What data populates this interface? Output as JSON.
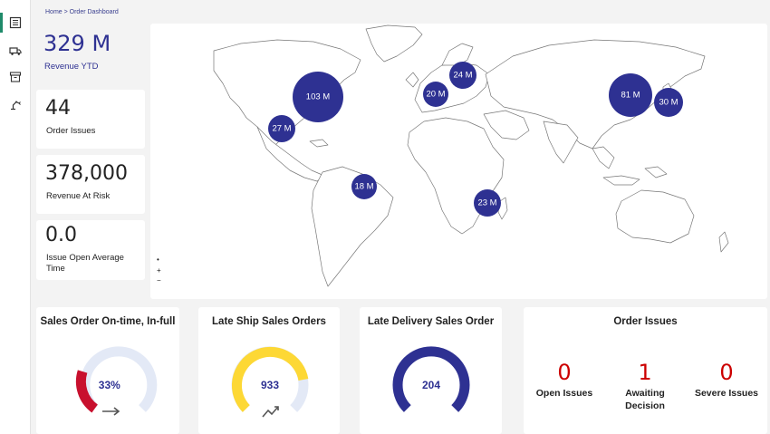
{
  "breadcrumb": "Home > Order Dashboard",
  "nav": {
    "icons": [
      "list-icon",
      "truck-icon",
      "archive-icon",
      "robot-arm-icon"
    ]
  },
  "kpis": {
    "revenue_ytd": {
      "value": "329 M",
      "label": "Revenue YTD"
    },
    "order_issues": {
      "value": "44",
      "label": "Order Issues"
    },
    "revenue_at_risk": {
      "value": "378,000",
      "label": "Revenue At Risk"
    },
    "issue_open_avg": {
      "value": "0.0",
      "label": "Issue Open Average Time"
    }
  },
  "map": {
    "zoom_controls": {
      "dot": "•",
      "plus": "+",
      "minus": "−"
    },
    "bubbles": [
      {
        "label": "103 M",
        "region": "north-america"
      },
      {
        "label": "27 M",
        "region": "mexico"
      },
      {
        "label": "18 M",
        "region": "brazil"
      },
      {
        "label": "20 M",
        "region": "western-europe"
      },
      {
        "label": "24 M",
        "region": "central-europe"
      },
      {
        "label": "23 M",
        "region": "south-africa"
      },
      {
        "label": "81 M",
        "region": "china"
      },
      {
        "label": "30 M",
        "region": "japan"
      }
    ]
  },
  "gauges": {
    "ontime": {
      "title": "Sales Order On-time, In-full",
      "value": "33%",
      "fraction": 0.33,
      "trend": "flat-arrow-icon"
    },
    "late_ship": {
      "title": "Late Ship Sales Orders",
      "value": "933",
      "fraction": 0.72,
      "trend": "trending-up-icon"
    },
    "late_delivery": {
      "title": "Late Delivery Sales Order",
      "value": "204",
      "fraction": 1.0
    }
  },
  "order_issues": {
    "title": "Order Issues",
    "open": {
      "value": "0",
      "label": "Open Issues"
    },
    "awaiting": {
      "value": "1",
      "label": "Awaiting Decision"
    },
    "severe": {
      "value": "0",
      "label": "Severe Issues"
    }
  },
  "colors": {
    "navy": "#2e3192",
    "red": "#c8102e",
    "yellow": "#fdd835",
    "track": "#e3e9f6",
    "issue_red": "#cc0000",
    "rail_accent": "#1f8a6a"
  }
}
